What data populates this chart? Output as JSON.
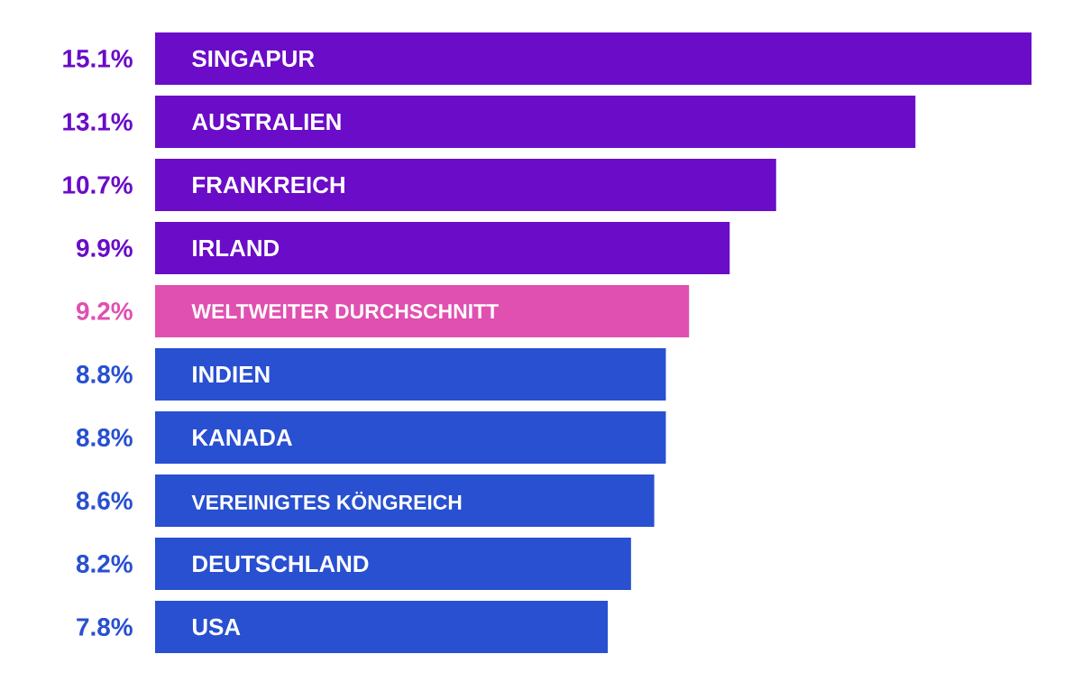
{
  "chart_data": {
    "type": "bar",
    "orientation": "horizontal",
    "xlim": [
      0,
      15.1
    ],
    "categories": [
      "SINGAPUR",
      "AUSTRALIEN",
      "FRANKREICH",
      "IRLAND",
      "WELTWEITER DURCHSCHNITT",
      "INDIEN",
      "KANADA",
      "VEREINIGTES KÖNGREICH",
      "DEUTSCHLAND",
      "USA"
    ],
    "values": [
      15.1,
      13.1,
      10.7,
      9.9,
      9.2,
      8.8,
      8.8,
      8.6,
      8.2,
      7.8
    ],
    "value_labels": [
      "15.1%",
      "13.1%",
      "10.7%",
      "9.9%",
      "9.2%",
      "8.8%",
      "8.8%",
      "8.6%",
      "8.2%",
      "7.8%"
    ],
    "colors": [
      "#6a0cc8",
      "#6a0cc8",
      "#6a0cc8",
      "#6a0cc8",
      "#e050b0",
      "#2850d0",
      "#2850d0",
      "#2850d0",
      "#2850d0",
      "#2850d0"
    ]
  }
}
